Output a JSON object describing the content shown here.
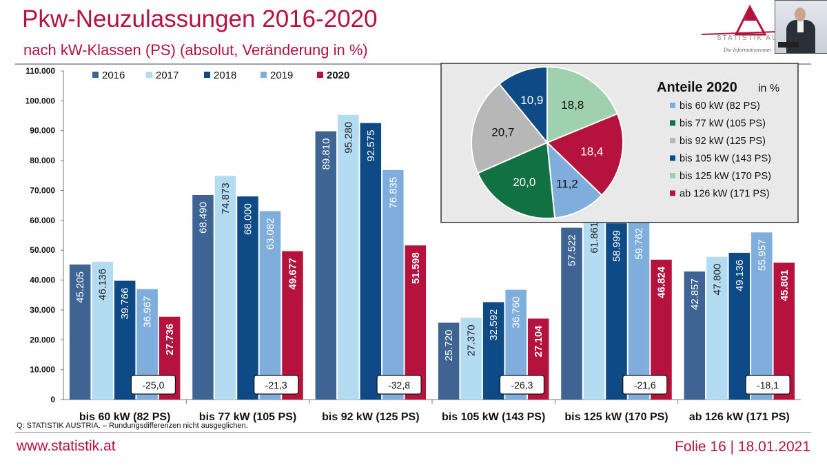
{
  "header": {
    "title": "Pkw-Neuzulassungen 2016-2020",
    "subtitle": "nach kW-Klassen (PS) (absolut, Veränderung in %)"
  },
  "logo": {
    "text": "STATISTIK AUS",
    "sub": "Die Informationsman"
  },
  "footer": {
    "source": "Q: STATISTIK AUSTRIA. – Rundungsdifferenzen nicht ausgeglichen.",
    "url": "www.statistik.at",
    "slide": "Folie 16 | 18.01.2021"
  },
  "colors": {
    "2016": "#3e6494",
    "2017": "#b3dcf2",
    "2018": "#0d4a86",
    "2019": "#7faedd",
    "2020": "#b5123e",
    "accent": "#b5123e"
  },
  "chart_data": [
    {
      "type": "bar",
      "title": "",
      "xlabel": "",
      "ylabel": "",
      "ylim": [
        0,
        110000
      ],
      "yticks": [
        "0",
        "10.000",
        "20.000",
        "30.000",
        "40.000",
        "50.000",
        "60.000",
        "70.000",
        "80.000",
        "90.000",
        "100.000",
        "110.000"
      ],
      "legend_position": "top-left",
      "categories": [
        "bis 60 kW (82 PS)",
        "bis 77 kW (105 PS)",
        "bis 92 kW (125 PS)",
        "bis 105 kW (143 PS)",
        "bis 125 kW (170 PS)",
        "ab 126 kW (171 PS)"
      ],
      "series": [
        {
          "name": "2016",
          "values": [
            45205,
            68490,
            89810,
            25720,
            57522,
            42857
          ],
          "labels": [
            "45.205",
            "68.490",
            "89.810",
            "25.720",
            "57.522",
            "42.857"
          ]
        },
        {
          "name": "2017",
          "values": [
            46136,
            74873,
            95280,
            27370,
            61861,
            47800
          ],
          "labels": [
            "46.136",
            "74.873",
            "95.280",
            "27.370",
            "61.861",
            "47.800"
          ]
        },
        {
          "name": "2018",
          "values": [
            39766,
            68000,
            92575,
            32592,
            58999,
            49136
          ],
          "labels": [
            "39.766",
            "68.000",
            "92.575",
            "32.592",
            "58.999",
            "49.136"
          ]
        },
        {
          "name": "2019",
          "values": [
            36967,
            63082,
            76835,
            36760,
            59762,
            55957
          ],
          "labels": [
            "36.967",
            "63.082",
            "76.835",
            "36.760",
            "59.762",
            "55.957"
          ]
        },
        {
          "name": "2020",
          "values": [
            27736,
            49677,
            51598,
            27104,
            46824,
            45801
          ],
          "labels": [
            "27.736",
            "49.677",
            "51.598",
            "27.104",
            "46.824",
            "45.801"
          ]
        }
      ],
      "changes": [
        "-25,0",
        "-21,3",
        "-32,8",
        "-26,3",
        "-21,6",
        "-18,1"
      ]
    },
    {
      "type": "pie",
      "title": "Anteile 2020",
      "subtitle": "in %",
      "legend_position": "right",
      "slices": [
        {
          "label": "bis 60 kW (82 PS)",
          "value": 11.2,
          "text": "11,2",
          "color": "#7faedd"
        },
        {
          "label": "bis 77 kW (105 PS)",
          "value": 20.0,
          "text": "20,0",
          "color": "#127142"
        },
        {
          "label": "bis 92 kW (125 PS)",
          "value": 20.7,
          "text": "20,7",
          "color": "#b7b7b7"
        },
        {
          "label": "bis 105 kW (143 PS)",
          "value": 10.9,
          "text": "10,9",
          "color": "#0d4a86"
        },
        {
          "label": "bis 125 kW (170 PS)",
          "value": 18.8,
          "text": "18,8",
          "color": "#9fd1ae"
        },
        {
          "label": "ab 126 kW (171 PS)",
          "value": 18.4,
          "text": "18,4",
          "color": "#b5123e"
        }
      ]
    }
  ]
}
